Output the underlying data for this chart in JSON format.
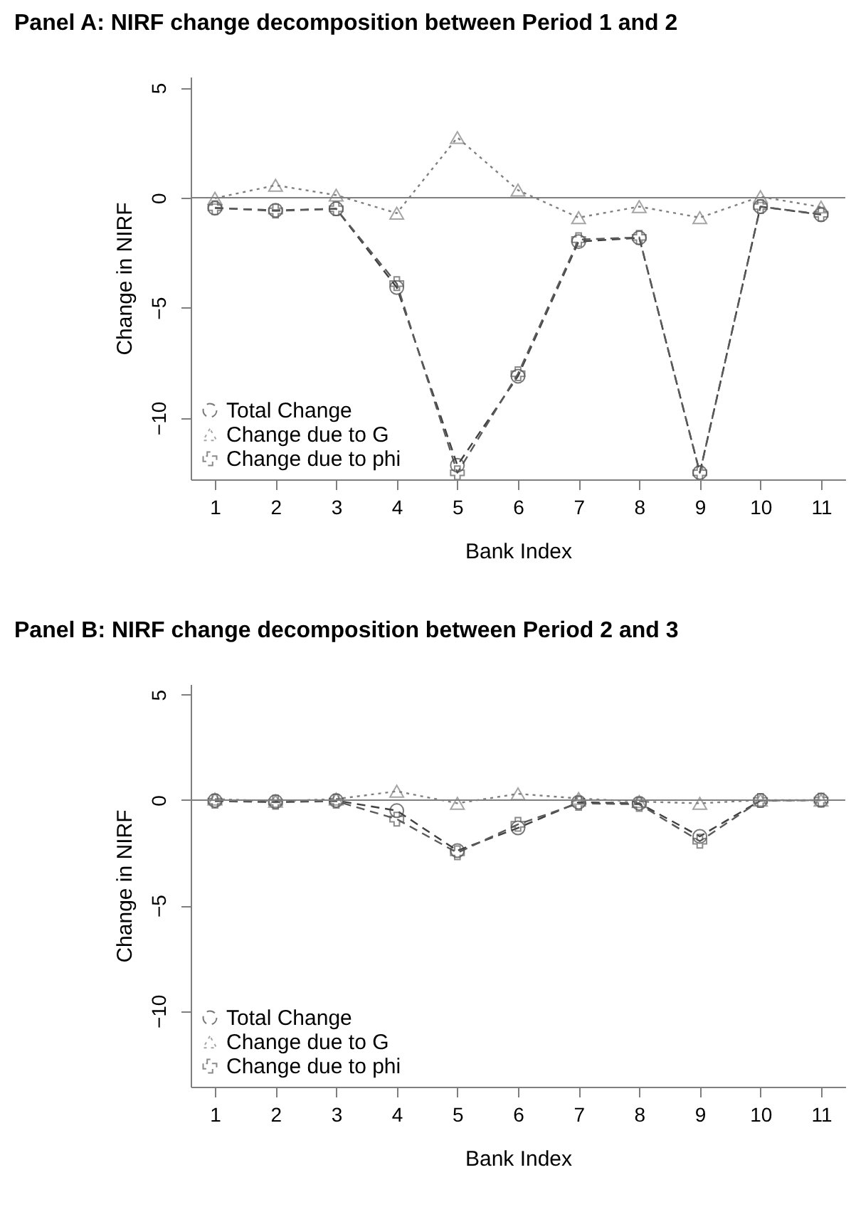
{
  "chart_data": [
    {
      "type": "line",
      "title": "Panel A: NIRF change decomposition between Period 1 and 2",
      "xlabel": "Bank Index",
      "ylabel": "Change in NIRF",
      "x": [
        1,
        2,
        3,
        4,
        5,
        6,
        7,
        8,
        9,
        10,
        11
      ],
      "xlim": [
        0.6,
        11.4
      ],
      "xticks": [
        1,
        2,
        3,
        4,
        5,
        6,
        7,
        8,
        9,
        10,
        11
      ],
      "ylim": [
        -12.8,
        5.5
      ],
      "yticks": [
        -10,
        -5,
        0,
        5
      ],
      "grid": false,
      "legend": "bottom left",
      "ref_lines": [
        {
          "axis": "y",
          "value": 0,
          "color": "#7f7f7f"
        }
      ],
      "series": [
        {
          "name": "Total Change",
          "color": "#404040",
          "marker": "circle",
          "line_style": "dashed",
          "values": [
            -0.47,
            -0.57,
            -0.5,
            -4.08,
            -12.16,
            -8.11,
            -1.99,
            -1.82,
            -12.49,
            -0.4,
            -0.77
          ]
        },
        {
          "name": "Change due to G",
          "color": "#7f7f7f",
          "marker": "triangle",
          "line_style": "dotted",
          "values": [
            -0.02,
            0.57,
            0.12,
            -0.7,
            2.74,
            0.35,
            -0.9,
            -0.4,
            -0.9,
            0.05,
            -0.42
          ]
        },
        {
          "name": "Change due to phi",
          "color": "#5a5a5a",
          "marker": "cross",
          "line_style": "dashed",
          "values": [
            -0.45,
            -0.6,
            -0.5,
            -3.9,
            -12.5,
            -8.0,
            -1.9,
            -1.8,
            -12.5,
            -0.4,
            -0.75
          ]
        }
      ]
    },
    {
      "type": "line",
      "title": "Panel B: NIRF change decomposition between Period 2 and 3",
      "xlabel": "Bank Index",
      "ylabel": "Change in NIRF",
      "x": [
        1,
        2,
        3,
        4,
        5,
        6,
        7,
        8,
        9,
        10,
        11
      ],
      "xlim": [
        0.6,
        11.4
      ],
      "xticks": [
        1,
        2,
        3,
        4,
        5,
        6,
        7,
        8,
        9,
        10,
        11
      ],
      "ylim": [
        -13.6,
        5.5
      ],
      "yticks": [
        -10,
        -5,
        0,
        5
      ],
      "grid": false,
      "legend": "bottom left",
      "ref_lines": [
        {
          "axis": "y",
          "value": 0,
          "color": "#7f7f7f"
        }
      ],
      "series": [
        {
          "name": "Total Change",
          "color": "#404040",
          "marker": "circle",
          "line_style": "dashed",
          "values": [
            -0.02,
            -0.07,
            -0.02,
            -0.5,
            -2.4,
            -1.32,
            -0.1,
            -0.15,
            -1.72,
            -0.02,
            0
          ]
        },
        {
          "name": "Change due to G",
          "color": "#7f7f7f",
          "marker": "triangle",
          "line_style": "dotted",
          "values": [
            0.05,
            -0.05,
            0.05,
            0.42,
            -0.15,
            0.3,
            0.08,
            -0.07,
            -0.15,
            0,
            0
          ]
        },
        {
          "name": "Change due to phi",
          "color": "#5a5a5a",
          "marker": "cross",
          "line_style": "dashed",
          "values": [
            -0.05,
            -0.1,
            -0.05,
            -0.9,
            -2.5,
            -1.15,
            -0.15,
            -0.2,
            -1.95,
            -0.02,
            0
          ]
        }
      ]
    }
  ]
}
